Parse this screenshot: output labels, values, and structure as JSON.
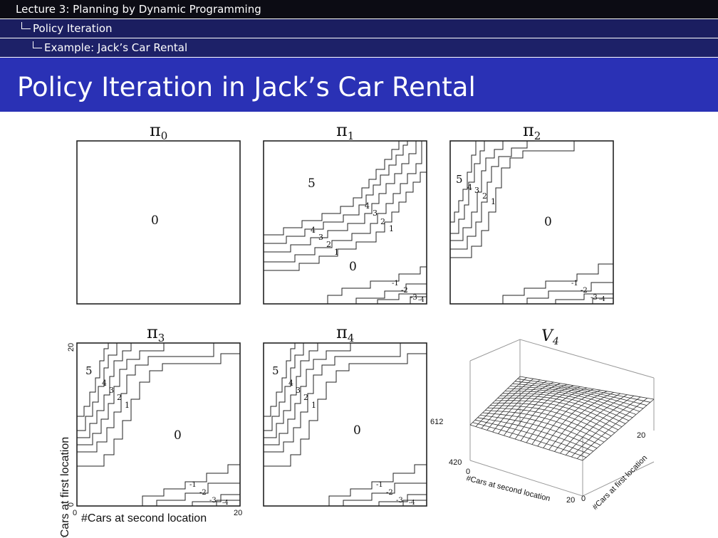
{
  "header": {
    "lecture": "Lecture 3: Planning by Dynamic Programming",
    "section": "Policy Iteration",
    "subsection": "Example: Jack’s Car Rental"
  },
  "slide": {
    "title": "Policy Iteration in Jack’s Car Rental"
  },
  "panels": [
    {
      "id": "pi0",
      "symbol": "π",
      "sub": "0",
      "labels": [
        {
          "text": "0"
        }
      ]
    },
    {
      "id": "pi1",
      "symbol": "π",
      "sub": "1",
      "labels": [
        {
          "text": "5"
        },
        {
          "text": "4"
        },
        {
          "text": "3"
        },
        {
          "text": "2"
        },
        {
          "text": "1"
        },
        {
          "text": "4"
        },
        {
          "text": "3"
        },
        {
          "text": "2"
        },
        {
          "text": "1"
        },
        {
          "text": "0"
        },
        {
          "text": "-1"
        },
        {
          "text": "-2"
        },
        {
          "text": "-3"
        },
        {
          "text": "-4"
        }
      ]
    },
    {
      "id": "pi2",
      "symbol": "π",
      "sub": "2",
      "labels": [
        {
          "text": "5"
        },
        {
          "text": "4"
        },
        {
          "text": "3"
        },
        {
          "text": "2"
        },
        {
          "text": "1"
        },
        {
          "text": "0"
        },
        {
          "text": "-1"
        },
        {
          "text": "-2"
        },
        {
          "text": "-3"
        },
        {
          "text": "-4"
        }
      ]
    },
    {
      "id": "pi3",
      "symbol": "π",
      "sub": "3",
      "labels": [
        {
          "text": "5"
        },
        {
          "text": "4"
        },
        {
          "text": "3"
        },
        {
          "text": "2"
        },
        {
          "text": "1"
        },
        {
          "text": "0"
        },
        {
          "text": "-1"
        },
        {
          "text": "-2"
        },
        {
          "text": "-3"
        },
        {
          "text": "-4"
        }
      ]
    },
    {
      "id": "pi4",
      "symbol": "π",
      "sub": "4",
      "labels": [
        {
          "text": "5"
        },
        {
          "text": "4"
        },
        {
          "text": "3"
        },
        {
          "text": "2"
        },
        {
          "text": "1"
        },
        {
          "text": "0"
        },
        {
          "text": "-1"
        },
        {
          "text": "-2"
        },
        {
          "text": "-3"
        },
        {
          "text": "-4"
        }
      ]
    }
  ],
  "axes": {
    "ylabel": "#Cars at first location",
    "xlabel": "#Cars at second location",
    "ymin": "0",
    "ymax": "20",
    "xmin": "0",
    "xmax": "20"
  },
  "surface": {
    "symbol": "V",
    "sub": "4",
    "zmax": "612",
    "zmin": "420",
    "xlabel": "#Cars at second location",
    "ylabel": "#Cars at first location",
    "x0": "0",
    "x20": "20",
    "y0": "0",
    "y20": "20"
  }
}
